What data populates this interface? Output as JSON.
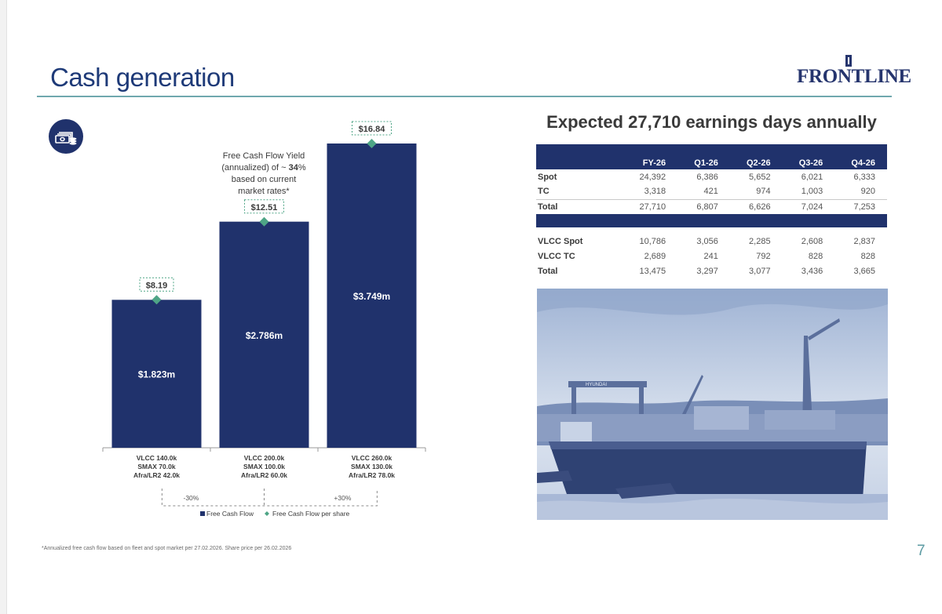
{
  "slide": {
    "title": "Cash generation",
    "page_number": "7",
    "footnote": "*Annualized free cash flow based on fleet and spot market per 27.02.2026. Share price per 26.02.2026"
  },
  "logo": {
    "text": "FRONTLINE"
  },
  "icons": {
    "cash": "cash-coins-icon"
  },
  "yield_note": {
    "line1": "Free Cash Flow Yield",
    "line2a": "(annualized) of ~ ",
    "line2b": "34",
    "line2c": "%",
    "line3": "based on current",
    "line4": "market rates*"
  },
  "colors": {
    "navy": "#20326c",
    "teal": "#4ea586",
    "accent": "#1e3a78",
    "rule": "#6fa8ae"
  },
  "chart_data": {
    "type": "bar",
    "categories": [
      [
        "VLCC 140.0k",
        "SMAX 70.0k",
        "Afra/LR2 42.0k"
      ],
      [
        "VLCC 200.0k",
        "SMAX 100.0k",
        "Afra/LR2 60.0k"
      ],
      [
        "VLCC 260.0k",
        "SMAX 130.0k",
        "Afra/LR2 78.0k"
      ]
    ],
    "series": [
      {
        "name": "Free Cash Flow",
        "values": [
          1.823,
          2.786,
          3.749
        ],
        "labels": [
          "$1.823m",
          "$2.786m",
          "$3.749m"
        ]
      },
      {
        "name": "Free Cash Flow per share",
        "values": [
          8.19,
          12.51,
          16.84
        ],
        "labels": [
          "$8.19",
          "$12.51",
          "$16.84"
        ]
      }
    ],
    "sensitivity": [
      "-30%",
      "+30%"
    ],
    "legend": [
      "Free Cash Flow",
      "Free Cash Flow per share"
    ],
    "legend_position": "bottom"
  },
  "earnings_table": {
    "title": "Expected 27,710 earnings days annually",
    "columns": [
      "",
      "FY-26",
      "Q1-26",
      "Q2-26",
      "Q3-26",
      "Q4-26"
    ],
    "group1": [
      {
        "label": "Spot",
        "values": [
          "24,392",
          "6,386",
          "5,652",
          "6,021",
          "6,333"
        ]
      },
      {
        "label": "TC",
        "values": [
          "3,318",
          "421",
          "974",
          "1,003",
          "920"
        ]
      },
      {
        "label": "Total",
        "values": [
          "27,710",
          "6,807",
          "6,626",
          "7,024",
          "7,253"
        ]
      }
    ],
    "group2": [
      {
        "label": "VLCC Spot",
        "values": [
          "10,786",
          "3,056",
          "2,285",
          "2,608",
          "2,837"
        ]
      },
      {
        "label": "VLCC TC",
        "values": [
          "2,689",
          "241",
          "792",
          "828",
          "828"
        ]
      },
      {
        "label": "Total",
        "values": [
          "13,475",
          "3,297",
          "3,077",
          "3,436",
          "3,665"
        ]
      }
    ]
  },
  "photo": {
    "shipyard_sign": "HYUNDAI"
  }
}
